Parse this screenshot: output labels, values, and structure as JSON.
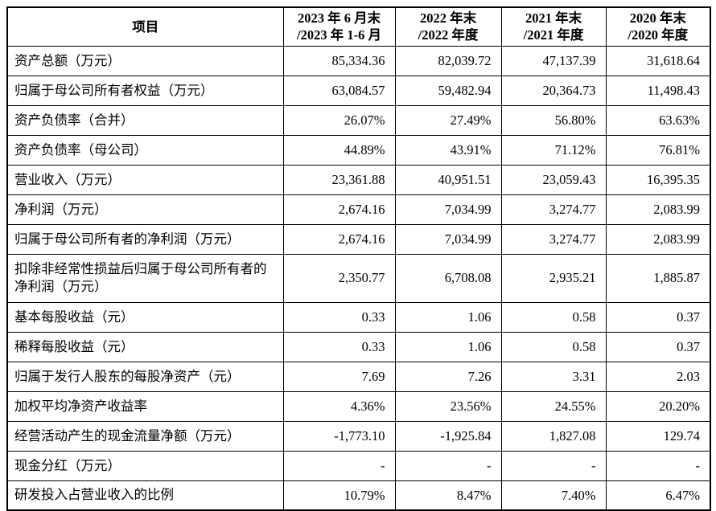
{
  "table": {
    "header": {
      "item_label": "项目",
      "cols": [
        {
          "line1": "2023 年 6 月末",
          "line2": "/2023 年 1-6 月"
        },
        {
          "line1": "2022 年末",
          "line2": "/2022 年度"
        },
        {
          "line1": "2021 年末",
          "line2": "/2021 年度"
        },
        {
          "line1": "2020 年末",
          "line2": "/2020 年度"
        }
      ]
    },
    "rows": [
      {
        "label": "资产总额（万元）",
        "tall": false,
        "values": [
          "85,334.36",
          "82,039.72",
          "47,137.39",
          "31,618.64"
        ]
      },
      {
        "label": "归属于母公司所有者权益（万元）",
        "tall": false,
        "values": [
          "63,084.57",
          "59,482.94",
          "20,364.73",
          "11,498.43"
        ]
      },
      {
        "label": "资产负债率（合并）",
        "tall": false,
        "values": [
          "26.07%",
          "27.49%",
          "56.80%",
          "63.63%"
        ]
      },
      {
        "label": "资产负债率（母公司）",
        "tall": false,
        "values": [
          "44.89%",
          "43.91%",
          "71.12%",
          "76.81%"
        ]
      },
      {
        "label": "营业收入（万元）",
        "tall": false,
        "values": [
          "23,361.88",
          "40,951.51",
          "23,059.43",
          "16,395.35"
        ]
      },
      {
        "label": "净利润（万元）",
        "tall": false,
        "values": [
          "2,674.16",
          "7,034.99",
          "3,274.77",
          "2,083.99"
        ]
      },
      {
        "label": "归属于母公司所有者的净利润（万元）",
        "tall": false,
        "values": [
          "2,674.16",
          "7,034.99",
          "3,274.77",
          "2,083.99"
        ]
      },
      {
        "label": "扣除非经常性损益后归属于母公司所有者的净利润（万元）",
        "tall": true,
        "values": [
          "2,350.77",
          "6,708.08",
          "2,935.21",
          "1,885.87"
        ]
      },
      {
        "label": "基本每股收益（元）",
        "tall": false,
        "values": [
          "0.33",
          "1.06",
          "0.58",
          "0.37"
        ]
      },
      {
        "label": "稀释每股收益（元）",
        "tall": false,
        "values": [
          "0.33",
          "1.06",
          "0.58",
          "0.37"
        ]
      },
      {
        "label": "归属于发行人股东的每股净资产（元）",
        "tall": false,
        "values": [
          "7.69",
          "7.26",
          "3.31",
          "2.03"
        ]
      },
      {
        "label": "加权平均净资产收益率",
        "tall": false,
        "values": [
          "4.36%",
          "23.56%",
          "24.55%",
          "20.20%"
        ]
      },
      {
        "label": "经营活动产生的现金流量净额（万元）",
        "tall": false,
        "values": [
          "-1,773.10",
          "-1,925.84",
          "1,827.08",
          "129.74"
        ]
      },
      {
        "label": "现金分红（万元）",
        "tall": false,
        "values": [
          "-",
          "-",
          "-",
          "-"
        ]
      },
      {
        "label": "研发投入占营业收入的比例",
        "tall": false,
        "values": [
          "10.79%",
          "8.47%",
          "7.40%",
          "6.47%"
        ]
      }
    ]
  }
}
